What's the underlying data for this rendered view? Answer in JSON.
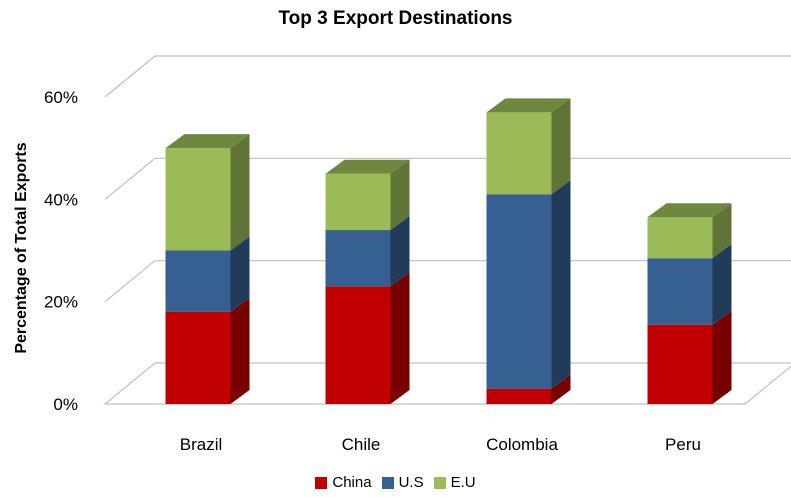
{
  "chart_data": {
    "type": "bar",
    "stacked": true,
    "three_d": true,
    "title": "Top 3 Export Destinations",
    "ylabel": "Percentage of Total Exports",
    "xlabel": "",
    "categories": [
      "Brazil",
      "Chile",
      "Colombia",
      "Peru"
    ],
    "series": [
      {
        "name": "China",
        "color": "#c00000",
        "values": [
          18,
          23,
          3,
          15.5
        ]
      },
      {
        "name": "U.S",
        "color": "#366092",
        "values": [
          12,
          11,
          38,
          13
        ]
      },
      {
        "name": "E.U",
        "color": "#9bbb59",
        "values": [
          20,
          11,
          16,
          8
        ]
      }
    ],
    "yticks": [
      "0%",
      "20%",
      "40%",
      "60%"
    ],
    "ylim": [
      0,
      60
    ],
    "grid": true,
    "legend_position": "bottom"
  }
}
